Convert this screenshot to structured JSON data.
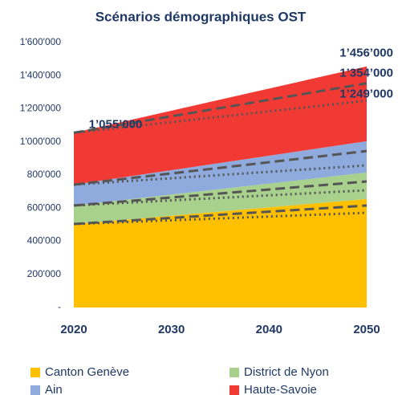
{
  "chart_data": {
    "type": "stacked_area",
    "title": "Scénarios démographiques OST",
    "x": [
      2020,
      2050
    ],
    "xlim": [
      2020,
      2050
    ],
    "xticks": [
      2020,
      2030,
      2040,
      2050
    ],
    "ylim": [
      0,
      1600000
    ],
    "yticks": [
      {
        "value": 0,
        "label": "-"
      },
      {
        "value": 200000,
        "label": "200'000"
      },
      {
        "value": 400000,
        "label": "400'000"
      },
      {
        "value": 600000,
        "label": "600'000"
      },
      {
        "value": 800000,
        "label": "800'000"
      },
      {
        "value": 1000000,
        "label": "1'000'000"
      },
      {
        "value": 1200000,
        "label": "1'200'000"
      },
      {
        "value": 1400000,
        "label": "1'400'000"
      },
      {
        "value": 1600000,
        "label": "1'600'000"
      }
    ],
    "series": [
      {
        "name": "Canton Genève",
        "color": "#ffc000",
        "values": [
          504000,
          655000
        ]
      },
      {
        "name": "District de Nyon",
        "color": "#a9d18e",
        "values": [
          112000,
          160000
        ]
      },
      {
        "name": "Ain",
        "color": "#8faadc",
        "values": [
          126000,
          189000
        ]
      },
      {
        "name": "Haute-Savoie",
        "color": "#f23a35",
        "values": [
          313000,
          452000
        ]
      }
    ],
    "scenario_lines": [
      {
        "dash": "dashed",
        "color": "#555555",
        "series_values": [
          [
            504000,
            616000
          ],
          [
            112000,
            145000
          ],
          [
            126000,
            184000
          ],
          [
            313000,
            409000
          ]
        ]
      },
      {
        "dash": "dotted",
        "color": "#555555",
        "series_values": [
          [
            504000,
            572000
          ],
          [
            112000,
            136000
          ],
          [
            126000,
            150000
          ],
          [
            313000,
            391000
          ]
        ]
      }
    ],
    "annotations": [
      "1’055’000",
      "1’456’000",
      "1’354’000",
      "1’249’000"
    ]
  }
}
